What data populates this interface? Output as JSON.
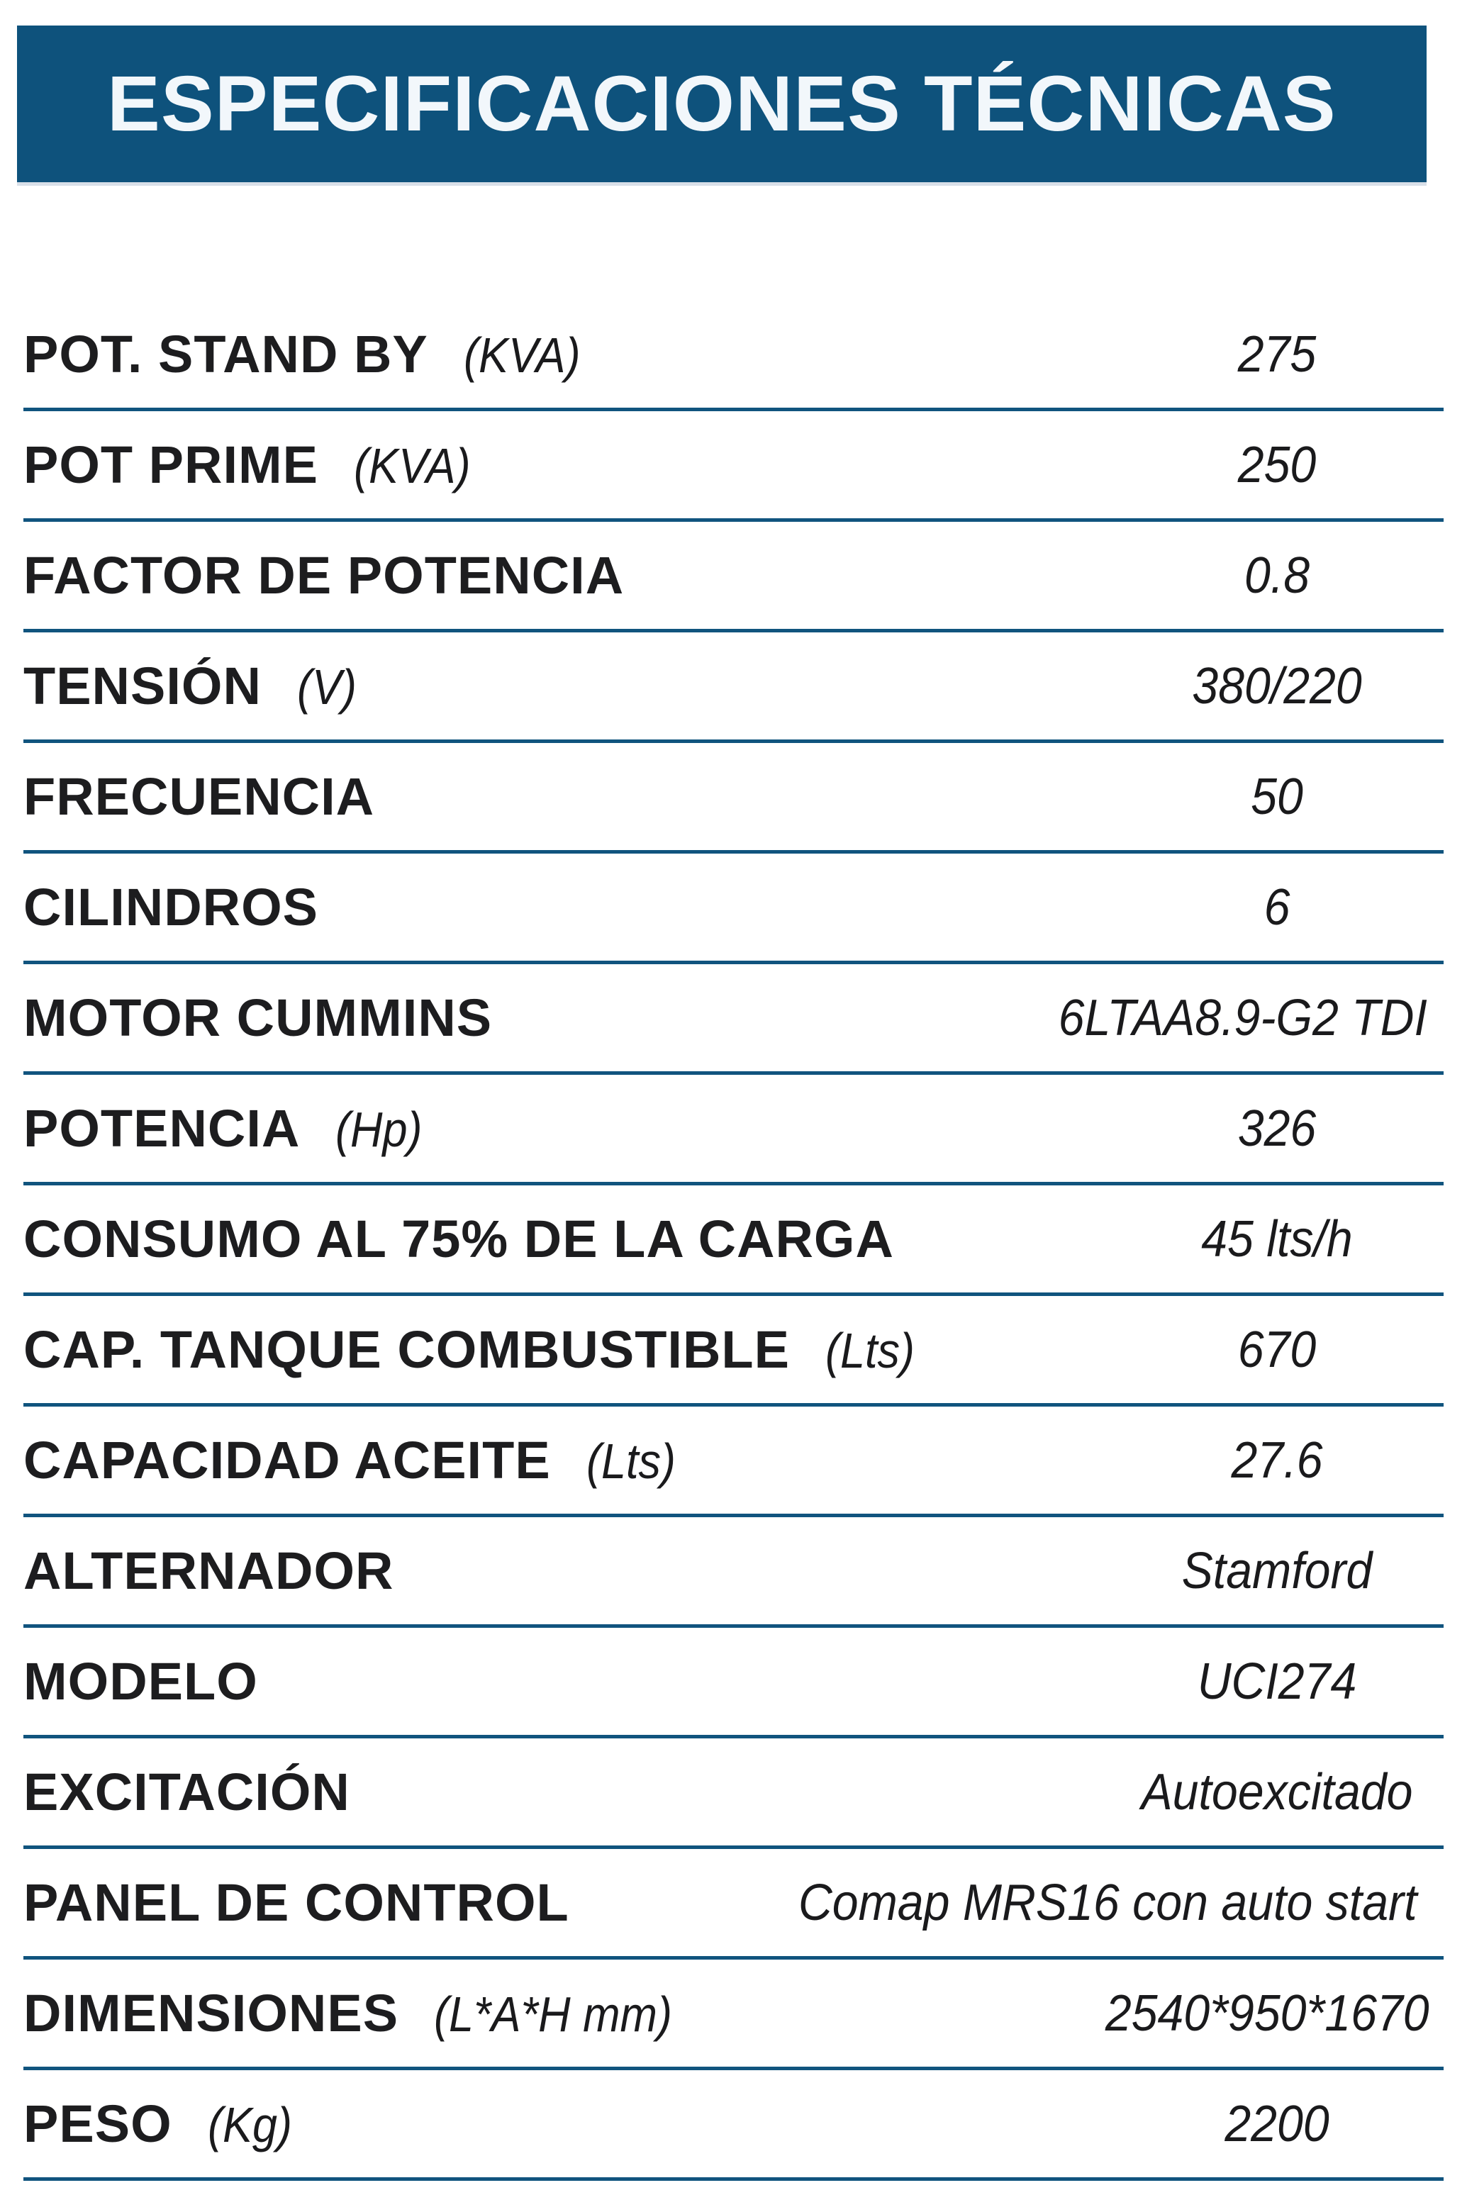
{
  "header": {
    "title": "ESPECIFICACIONES TÉCNICAS",
    "bg_color": "#0E527C",
    "text_color": "#F2F7FB"
  },
  "table": {
    "separator_color": "#10547E",
    "rows": [
      {
        "label": "POT. STAND BY",
        "unit": "(KVA)",
        "value": "275"
      },
      {
        "label": "POT PRIME",
        "unit": "(KVA)",
        "value": "250"
      },
      {
        "label": "FACTOR DE POTENCIA",
        "unit": "",
        "value": "0.8"
      },
      {
        "label": "TENSIÓN",
        "unit": "(V)",
        "value": "380/220"
      },
      {
        "label": "FRECUENCIA",
        "unit": "",
        "value": "50"
      },
      {
        "label": "CILINDROS",
        "unit": "",
        "value": "6"
      },
      {
        "label": "MOTOR CUMMINS",
        "unit": "",
        "value": "6LTAA8.9-G2 TDI"
      },
      {
        "label": "POTENCIA",
        "unit": "(Hp)",
        "value": "326"
      },
      {
        "label": "CONSUMO AL 75% DE LA CARGA",
        "unit": "",
        "value": "45 lts/h"
      },
      {
        "label": "CAP. TANQUE COMBUSTIBLE",
        "unit": "(Lts)",
        "value": "670"
      },
      {
        "label": "CAPACIDAD ACEITE",
        "unit": "(Lts)",
        "value": "27.6"
      },
      {
        "label": "ALTERNADOR",
        "unit": "",
        "value": "Stamford"
      },
      {
        "label": "MODELO",
        "unit": "",
        "value": "UCI274"
      },
      {
        "label": "EXCITACIÓN",
        "unit": "",
        "value": "Autoexcitado"
      },
      {
        "label": "PANEL DE CONTROL",
        "unit": "",
        "value": "Comap MRS16 con auto start"
      },
      {
        "label": "DIMENSIONES",
        "unit": "(L*A*H mm)",
        "value": "2540*950*1670"
      },
      {
        "label": "PESO",
        "unit": "(Kg)",
        "value": "2200"
      }
    ]
  }
}
